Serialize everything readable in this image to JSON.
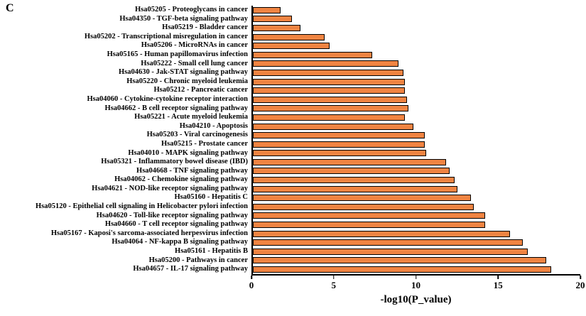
{
  "panel_label": "C",
  "chart_data": {
    "type": "bar",
    "orientation": "horizontal",
    "title": "",
    "xlabel": "-log10(P_value)",
    "ylabel": "",
    "xlim": [
      0,
      20
    ],
    "xticks": [
      0,
      5,
      10,
      15,
      20
    ],
    "grid": false,
    "legend": "none",
    "bar_color": "#F08442",
    "bar_border_color": "#000000",
    "categories": [
      "Hsa05205 - Proteoglycans in cancer",
      "Hsa04350 - TGF-beta signaling pathway",
      "Hsa05219 - Bladder cancer",
      "Hsa05202 - Transcriptional misregulation in cancer",
      "Hsa05206 - MicroRNAs in cancer",
      "Hsa05165 - Human papillomavirus infection",
      "Hsa05222 - Small cell lung cancer",
      "Hsa04630 - Jak-STAT signaling pathway",
      "Hsa05220 - Chronic myeloid leukemia",
      "Hsa05212 - Pancreatic cancer",
      "Hsa04060 - Cytokine-cytokine receptor interaction",
      "Hsa04662 - B cell receptor signaling pathway",
      "Hsa05221 - Acute myeloid leukemia",
      "Hsa04210 - Apoptosis",
      "Hsa05203 - Viral carcinogenesis",
      "Hsa05215 - Prostate cancer",
      "Hsa04010 - MAPK signaling pathway",
      "Hsa05321 - Inflammatory bowel disease (IBD)",
      "Hsa04668 - TNF signaling pathway",
      "Hsa04062 - Chemokine signaling pathway",
      "Hsa04621 - NOD-like receptor signaling pathway",
      "Hsa05160 - Hepatitis C",
      "Hsa05120 - Epithelial cell signaling in Helicobacter pylori infection",
      "Hsa04620 - Toll-like receptor signaling pathway",
      "Hsa04660 - T cell receptor signaling pathway",
      "Hsa05167 - Kaposi's sarcoma-associated herpesvirus infection",
      "Hsa04064 - NF-kappa B signaling pathway",
      "Hsa05161 - Hepatitis B",
      "Hsa05200 - Pathways in cancer",
      "Hsa04657 - IL-17 signaling pathway"
    ],
    "values": [
      1.7,
      2.4,
      2.9,
      4.4,
      4.7,
      7.3,
      8.9,
      9.2,
      9.3,
      9.3,
      9.4,
      9.5,
      9.3,
      9.8,
      10.5,
      10.5,
      10.6,
      11.8,
      12.0,
      12.3,
      12.5,
      13.3,
      13.5,
      14.2,
      14.2,
      15.7,
      16.5,
      16.8,
      17.9,
      18.2
    ]
  }
}
